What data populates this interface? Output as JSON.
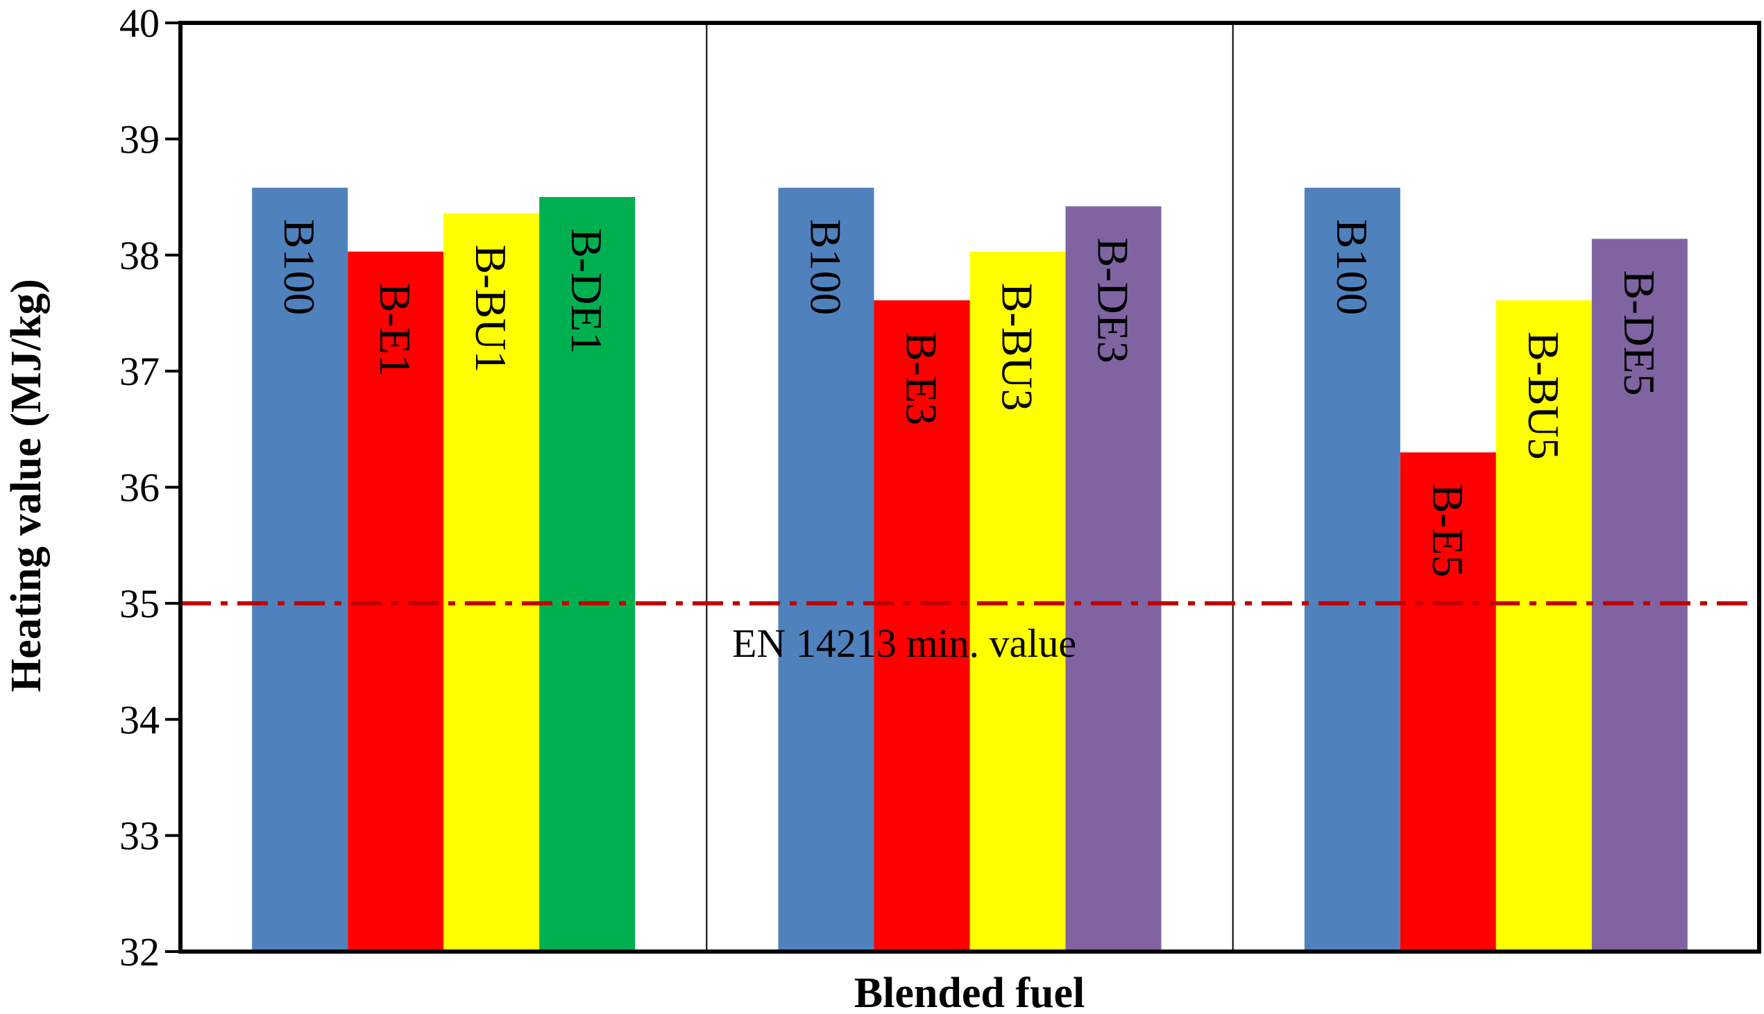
{
  "chart_data": {
    "type": "bar",
    "xlabel": "Blended fuel",
    "ylabel": "Heating value (MJ/kg)",
    "ylim": [
      32,
      40
    ],
    "yticks": [
      32,
      33,
      34,
      35,
      36,
      37,
      38,
      39,
      40
    ],
    "grid": false,
    "legend": "none",
    "groups": [
      {
        "bars": [
          {
            "label": "B100",
            "value": 38.58,
            "color": "#4f81bd"
          },
          {
            "label": "B-E1",
            "value": 38.03,
            "color": "#ff0000"
          },
          {
            "label": "B-BU1",
            "value": 38.36,
            "color": "#ffff00"
          },
          {
            "label": "B-DE1",
            "value": 38.5,
            "color": "#00b050"
          }
        ]
      },
      {
        "bars": [
          {
            "label": "B100",
            "value": 38.58,
            "color": "#4f81bd"
          },
          {
            "label": "B-E3",
            "value": 37.61,
            "color": "#ff0000"
          },
          {
            "label": "B-BU3",
            "value": 38.03,
            "color": "#ffff00"
          },
          {
            "label": "B-DE3",
            "value": 38.42,
            "color": "#8064a2"
          }
        ]
      },
      {
        "bars": [
          {
            "label": "B100",
            "value": 38.58,
            "color": "#4f81bd"
          },
          {
            "label": "B-E5",
            "value": 36.3,
            "color": "#ff0000"
          },
          {
            "label": "B-BU5",
            "value": 37.61,
            "color": "#ffff00"
          },
          {
            "label": "B-DE5",
            "value": 38.14,
            "color": "#8064a2"
          }
        ]
      }
    ],
    "reference_line": {
      "value": 35,
      "label": "EN 14213  min. value",
      "color": "#c00000",
      "style": "dash-dot"
    }
  }
}
